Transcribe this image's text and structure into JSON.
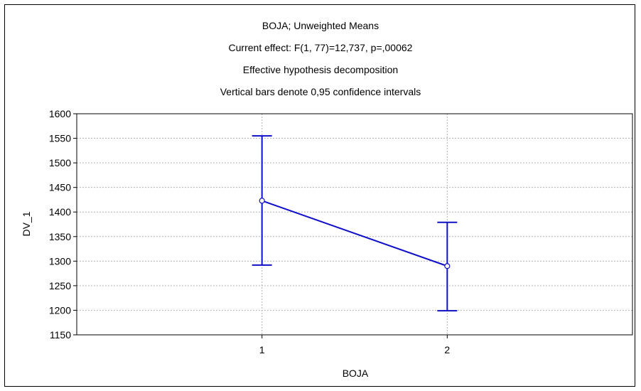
{
  "chart_data": {
    "type": "line",
    "title_lines": [
      "BOJA; Unweighted Means",
      "Current effect: F(1, 77)=12,737, p=,00062",
      "Effective hypothesis decomposition",
      "Vertical bars denote 0,95 confidence intervals"
    ],
    "xlabel": "BOJA",
    "ylabel": "DV_1",
    "categories": [
      "1",
      "2"
    ],
    "series": [
      {
        "means": [
          1423,
          1290
        ],
        "ci_lower": [
          1292,
          1199
        ],
        "ci_upper": [
          1555,
          1379
        ]
      }
    ],
    "ylim": [
      1150,
      1600
    ],
    "yticks": [
      1150,
      1200,
      1250,
      1300,
      1350,
      1400,
      1450,
      1500,
      1550,
      1600
    ],
    "grid": true,
    "colors": {
      "series": "#1010c8",
      "grid": "#b4b4b4",
      "axis": "#000000"
    }
  }
}
